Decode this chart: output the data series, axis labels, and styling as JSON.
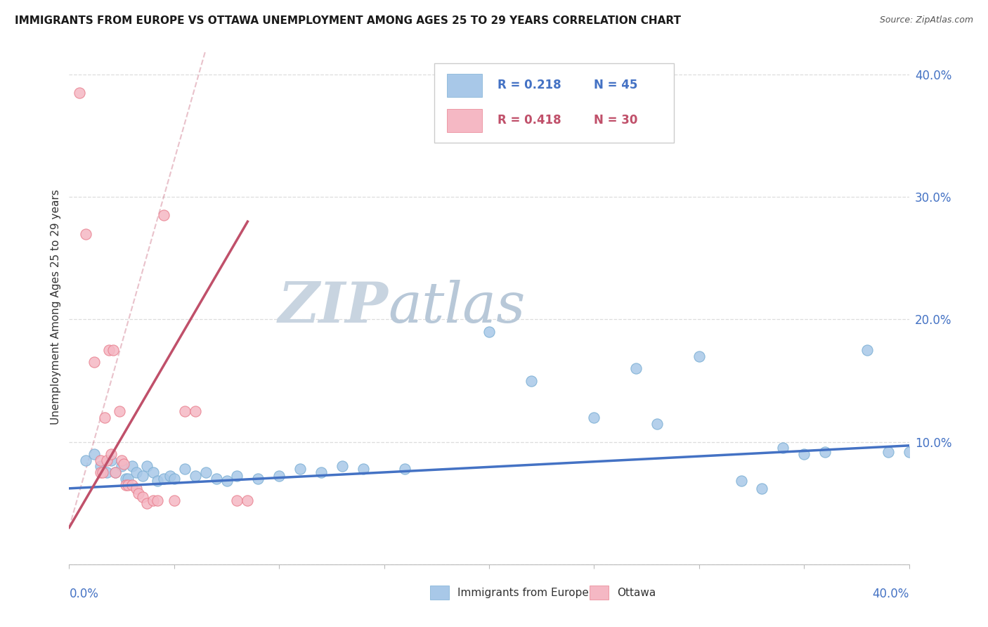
{
  "title": "IMMIGRANTS FROM EUROPE VS OTTAWA UNEMPLOYMENT AMONG AGES 25 TO 29 YEARS CORRELATION CHART",
  "source": "Source: ZipAtlas.com",
  "ylabel": "Unemployment Among Ages 25 to 29 years",
  "xlim": [
    0.0,
    0.4
  ],
  "ylim": [
    0.0,
    0.42
  ],
  "watermark_zip": "ZIP",
  "watermark_atlas": "atlas",
  "blue_scatter": [
    [
      0.008,
      0.085
    ],
    [
      0.012,
      0.09
    ],
    [
      0.015,
      0.08
    ],
    [
      0.018,
      0.075
    ],
    [
      0.02,
      0.085
    ],
    [
      0.022,
      0.075
    ],
    [
      0.025,
      0.08
    ],
    [
      0.027,
      0.07
    ],
    [
      0.028,
      0.07
    ],
    [
      0.03,
      0.08
    ],
    [
      0.032,
      0.075
    ],
    [
      0.035,
      0.072
    ],
    [
      0.037,
      0.08
    ],
    [
      0.04,
      0.075
    ],
    [
      0.042,
      0.068
    ],
    [
      0.045,
      0.07
    ],
    [
      0.048,
      0.072
    ],
    [
      0.05,
      0.07
    ],
    [
      0.055,
      0.078
    ],
    [
      0.06,
      0.072
    ],
    [
      0.065,
      0.075
    ],
    [
      0.07,
      0.07
    ],
    [
      0.075,
      0.068
    ],
    [
      0.08,
      0.072
    ],
    [
      0.09,
      0.07
    ],
    [
      0.1,
      0.072
    ],
    [
      0.11,
      0.078
    ],
    [
      0.12,
      0.075
    ],
    [
      0.13,
      0.08
    ],
    [
      0.14,
      0.078
    ],
    [
      0.16,
      0.078
    ],
    [
      0.2,
      0.19
    ],
    [
      0.22,
      0.15
    ],
    [
      0.25,
      0.12
    ],
    [
      0.27,
      0.16
    ],
    [
      0.28,
      0.115
    ],
    [
      0.3,
      0.17
    ],
    [
      0.32,
      0.068
    ],
    [
      0.33,
      0.062
    ],
    [
      0.34,
      0.095
    ],
    [
      0.35,
      0.09
    ],
    [
      0.36,
      0.092
    ],
    [
      0.38,
      0.175
    ],
    [
      0.39,
      0.092
    ],
    [
      0.4,
      0.092
    ]
  ],
  "pink_scatter": [
    [
      0.005,
      0.385
    ],
    [
      0.008,
      0.27
    ],
    [
      0.012,
      0.165
    ],
    [
      0.015,
      0.085
    ],
    [
      0.015,
      0.075
    ],
    [
      0.016,
      0.075
    ],
    [
      0.017,
      0.12
    ],
    [
      0.018,
      0.085
    ],
    [
      0.019,
      0.175
    ],
    [
      0.02,
      0.09
    ],
    [
      0.021,
      0.175
    ],
    [
      0.022,
      0.075
    ],
    [
      0.024,
      0.125
    ],
    [
      0.025,
      0.085
    ],
    [
      0.026,
      0.082
    ],
    [
      0.027,
      0.065
    ],
    [
      0.028,
      0.065
    ],
    [
      0.03,
      0.065
    ],
    [
      0.032,
      0.062
    ],
    [
      0.033,
      0.058
    ],
    [
      0.035,
      0.055
    ],
    [
      0.037,
      0.05
    ],
    [
      0.04,
      0.052
    ],
    [
      0.042,
      0.052
    ],
    [
      0.045,
      0.285
    ],
    [
      0.05,
      0.052
    ],
    [
      0.055,
      0.125
    ],
    [
      0.06,
      0.125
    ],
    [
      0.08,
      0.052
    ],
    [
      0.085,
      0.052
    ]
  ],
  "blue_line_x": [
    0.0,
    0.4
  ],
  "blue_line_y": [
    0.062,
    0.097
  ],
  "pink_solid_line_x": [
    0.0,
    0.085
  ],
  "pink_solid_line_y": [
    0.03,
    0.28
  ],
  "pink_dashed_line_x": [
    0.0,
    0.065
  ],
  "pink_dashed_line_y": [
    0.03,
    0.42
  ],
  "scatter_blue_color": "#a8c8e8",
  "scatter_blue_edge": "#7bafd4",
  "scatter_pink_color": "#f5b8c4",
  "scatter_pink_edge": "#e8808f",
  "line_blue_color": "#4472c4",
  "line_pink_color": "#c0506a",
  "watermark_zip_color": "#c8d4e0",
  "watermark_atlas_color": "#b8c8d8",
  "bg_color": "#ffffff",
  "grid_color": "#dddddd",
  "legend_r1": "R = 0.218",
  "legend_n1": "N = 45",
  "legend_r2": "R = 0.418",
  "legend_n2": "N = 30",
  "legend_blue_color": "#4472c4",
  "legend_pink_color": "#c0506a",
  "ytick_color": "#4472c4",
  "xtick_color": "#4472c4"
}
